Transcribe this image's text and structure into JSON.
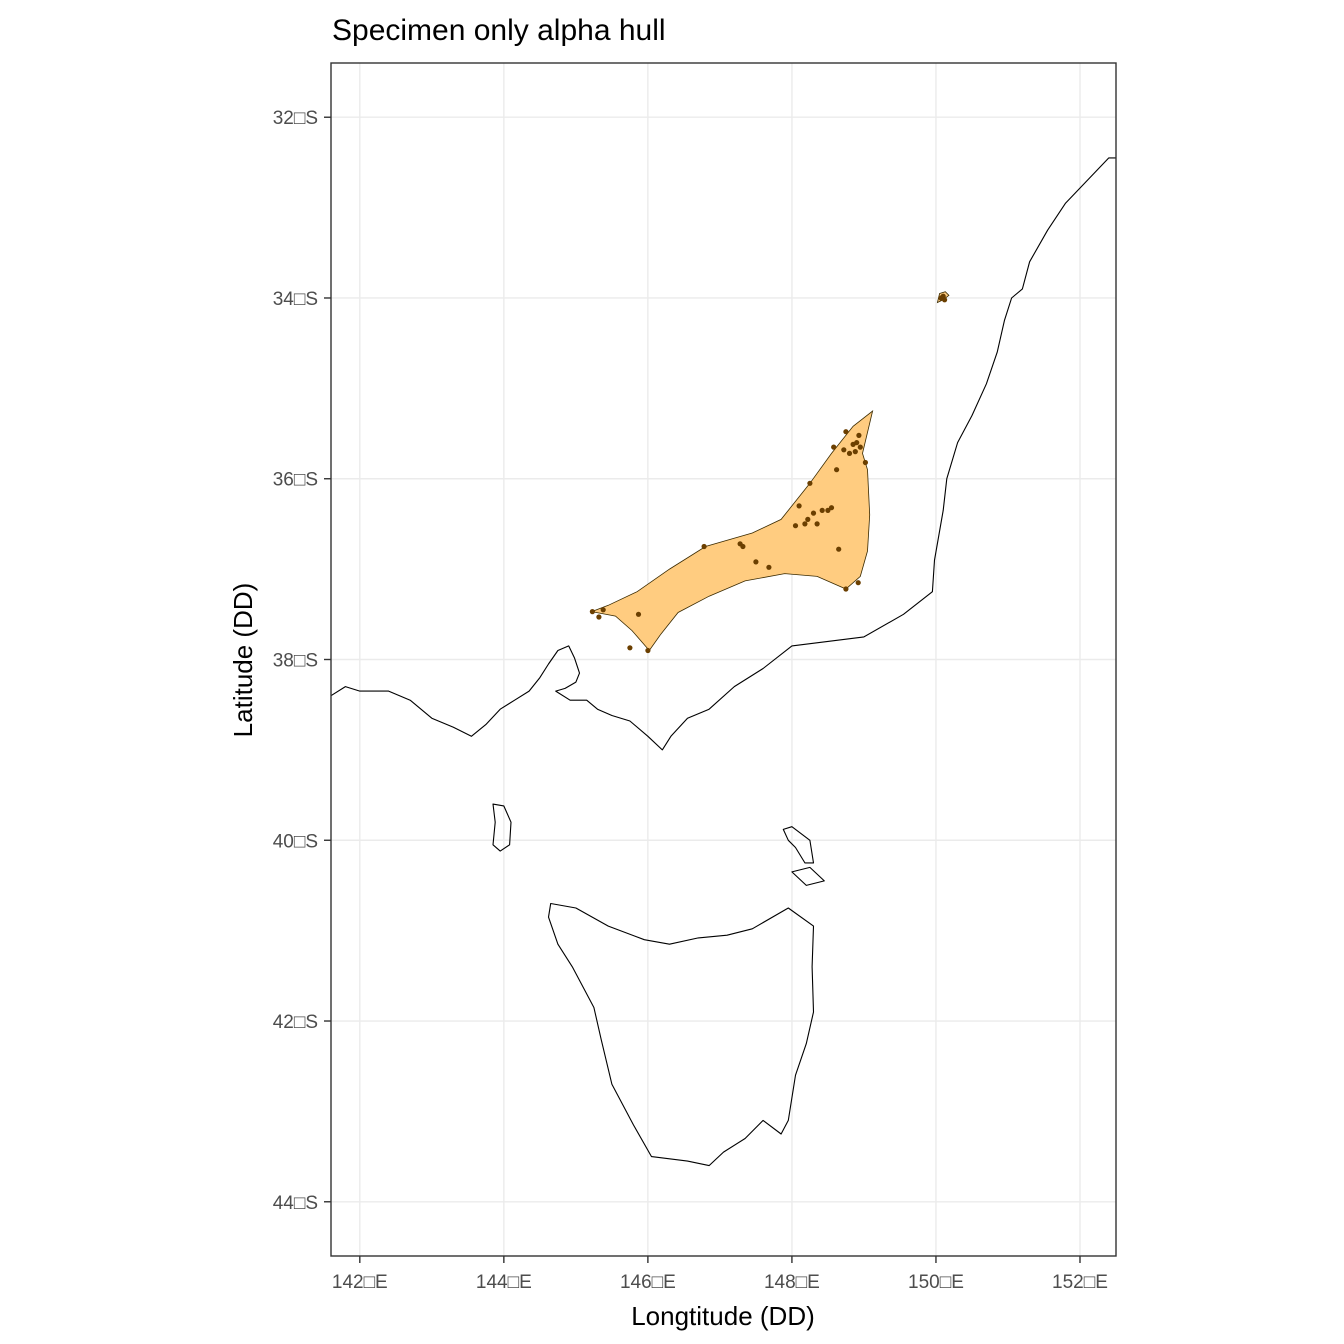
{
  "plot": {
    "title": "Specimen only alpha hull",
    "xlabel": "Longtitude (DD)",
    "ylabel": "Latitude (DD)",
    "hull_color": "#FFCC80",
    "point_color": "#6B3F00",
    "panel_border_color": "#333333",
    "grid_color": "#EBEBEB"
  },
  "chart_data": {
    "type": "map",
    "title": "Specimen only alpha hull",
    "xlabel": "Longtitude (DD)",
    "ylabel": "Latitude (DD)",
    "xlim": [
      141.6,
      152.5
    ],
    "ylim": [
      -44.6,
      -31.4
    ],
    "grid": true,
    "x_ticks": [
      {
        "value": 142,
        "label": "142□E"
      },
      {
        "value": 144,
        "label": "144□E"
      },
      {
        "value": 146,
        "label": "146□E"
      },
      {
        "value": 148,
        "label": "148□E"
      },
      {
        "value": 150,
        "label": "150□E"
      },
      {
        "value": 152,
        "label": "152□E"
      }
    ],
    "y_ticks": [
      {
        "value": -32,
        "label": "32□S"
      },
      {
        "value": -34,
        "label": "34□S"
      },
      {
        "value": -36,
        "label": "36□S"
      },
      {
        "value": -38,
        "label": "38□S"
      },
      {
        "value": -40,
        "label": "40□S"
      },
      {
        "value": -42,
        "label": "42□S"
      },
      {
        "value": -44,
        "label": "44□S"
      }
    ],
    "hull_polygons": [
      [
        [
          145.22,
          -37.47
        ],
        [
          145.55,
          -37.52
        ],
        [
          145.78,
          -37.68
        ],
        [
          146.02,
          -37.9
        ],
        [
          146.18,
          -37.72
        ],
        [
          146.42,
          -37.48
        ],
        [
          146.85,
          -37.3
        ],
        [
          147.35,
          -37.13
        ],
        [
          147.9,
          -37.05
        ],
        [
          148.35,
          -37.08
        ],
        [
          148.75,
          -37.22
        ],
        [
          148.95,
          -37.08
        ],
        [
          149.05,
          -36.8
        ],
        [
          149.08,
          -36.4
        ],
        [
          149.05,
          -35.9
        ],
        [
          148.98,
          -35.72
        ],
        [
          149.12,
          -35.25
        ],
        [
          148.85,
          -35.42
        ],
        [
          148.55,
          -35.72
        ],
        [
          148.25,
          -36.05
        ],
        [
          147.85,
          -36.45
        ],
        [
          147.45,
          -36.6
        ],
        [
          146.8,
          -36.75
        ],
        [
          146.3,
          -37.0
        ],
        [
          145.85,
          -37.25
        ],
        [
          145.45,
          -37.4
        ]
      ],
      [
        [
          150.05,
          -33.95
        ],
        [
          150.13,
          -33.93
        ],
        [
          150.18,
          -33.97
        ],
        [
          150.1,
          -34.02
        ],
        [
          150.02,
          -34.05
        ]
      ]
    ],
    "specimen_points": [
      [
        145.23,
        -37.47
      ],
      [
        145.32,
        -37.53
      ],
      [
        145.38,
        -37.45
      ],
      [
        145.75,
        -37.87
      ],
      [
        145.87,
        -37.5
      ],
      [
        146.0,
        -37.9
      ],
      [
        146.78,
        -36.75
      ],
      [
        147.28,
        -36.72
      ],
      [
        147.32,
        -36.75
      ],
      [
        147.5,
        -36.92
      ],
      [
        147.68,
        -36.98
      ],
      [
        148.05,
        -36.52
      ],
      [
        148.1,
        -36.3
      ],
      [
        148.18,
        -36.5
      ],
      [
        148.22,
        -36.45
      ],
      [
        148.25,
        -36.05
      ],
      [
        148.3,
        -36.38
      ],
      [
        148.35,
        -36.5
      ],
      [
        148.42,
        -36.35
      ],
      [
        148.5,
        -36.35
      ],
      [
        148.55,
        -36.32
      ],
      [
        148.65,
        -36.78
      ],
      [
        148.75,
        -37.22
      ],
      [
        148.92,
        -37.15
      ],
      [
        148.58,
        -35.65
      ],
      [
        148.62,
        -35.9
      ],
      [
        148.72,
        -35.68
      ],
      [
        148.75,
        -35.48
      ],
      [
        148.8,
        -35.72
      ],
      [
        148.85,
        -35.62
      ],
      [
        148.88,
        -35.7
      ],
      [
        148.9,
        -35.6
      ],
      [
        148.93,
        -35.52
      ],
      [
        148.95,
        -35.65
      ],
      [
        149.02,
        -35.82
      ],
      [
        150.07,
        -34.0
      ],
      [
        150.1,
        -33.98
      ],
      [
        150.12,
        -34.02
      ]
    ],
    "coastlines": {
      "mainland": [
        [
          141.6,
          -38.4
        ],
        [
          141.8,
          -38.3
        ],
        [
          142.0,
          -38.35
        ],
        [
          142.4,
          -38.35
        ],
        [
          142.7,
          -38.45
        ],
        [
          143.0,
          -38.65
        ],
        [
          143.3,
          -38.75
        ],
        [
          143.55,
          -38.85
        ],
        [
          143.75,
          -38.72
        ],
        [
          143.95,
          -38.55
        ],
        [
          144.15,
          -38.45
        ],
        [
          144.35,
          -38.35
        ],
        [
          144.5,
          -38.2
        ],
        [
          144.62,
          -38.05
        ],
        [
          144.75,
          -37.9
        ],
        [
          144.9,
          -37.85
        ],
        [
          144.98,
          -37.98
        ],
        [
          145.05,
          -38.15
        ],
        [
          145.0,
          -38.25
        ],
        [
          144.85,
          -38.32
        ],
        [
          144.72,
          -38.35
        ],
        [
          144.92,
          -38.45
        ],
        [
          145.15,
          -38.45
        ],
        [
          145.3,
          -38.55
        ],
        [
          145.5,
          -38.62
        ],
        [
          145.75,
          -38.68
        ],
        [
          146.0,
          -38.85
        ],
        [
          146.2,
          -39.0
        ],
        [
          146.32,
          -38.85
        ],
        [
          146.55,
          -38.65
        ],
        [
          146.85,
          -38.55
        ],
        [
          147.2,
          -38.3
        ],
        [
          147.6,
          -38.1
        ],
        [
          148.0,
          -37.85
        ],
        [
          148.5,
          -37.8
        ],
        [
          149.0,
          -37.75
        ],
        [
          149.55,
          -37.5
        ],
        [
          149.95,
          -37.25
        ],
        [
          149.98,
          -36.9
        ],
        [
          150.1,
          -36.35
        ],
        [
          150.15,
          -36.0
        ],
        [
          150.3,
          -35.6
        ],
        [
          150.5,
          -35.3
        ],
        [
          150.7,
          -34.95
        ],
        [
          150.85,
          -34.6
        ],
        [
          150.95,
          -34.25
        ],
        [
          151.05,
          -34.0
        ],
        [
          151.2,
          -33.9
        ],
        [
          151.3,
          -33.6
        ],
        [
          151.55,
          -33.25
        ],
        [
          151.8,
          -32.95
        ],
        [
          152.1,
          -32.7
        ],
        [
          152.4,
          -32.45
        ],
        [
          152.5,
          -32.45
        ]
      ],
      "king_island": [
        [
          143.85,
          -39.6
        ],
        [
          144.0,
          -39.62
        ],
        [
          144.1,
          -39.8
        ],
        [
          144.08,
          -40.05
        ],
        [
          143.95,
          -40.12
        ],
        [
          143.85,
          -40.05
        ],
        [
          143.88,
          -39.8
        ]
      ],
      "flinders_island": [
        [
          147.88,
          -39.88
        ],
        [
          148.0,
          -39.85
        ],
        [
          148.25,
          -40.0
        ],
        [
          148.3,
          -40.25
        ],
        [
          148.18,
          -40.25
        ],
        [
          148.05,
          -40.08
        ],
        [
          147.95,
          -40.0
        ]
      ],
      "cape_barren_island": [
        [
          148.0,
          -40.35
        ],
        [
          148.25,
          -40.3
        ],
        [
          148.45,
          -40.45
        ],
        [
          148.2,
          -40.5
        ]
      ],
      "tasmania": [
        [
          144.65,
          -40.7
        ],
        [
          145.0,
          -40.75
        ],
        [
          145.45,
          -40.95
        ],
        [
          145.95,
          -41.1
        ],
        [
          146.3,
          -41.15
        ],
        [
          146.7,
          -41.08
        ],
        [
          147.1,
          -41.05
        ],
        [
          147.45,
          -40.98
        ],
        [
          147.95,
          -40.75
        ],
        [
          148.3,
          -40.95
        ],
        [
          148.28,
          -41.4
        ],
        [
          148.3,
          -41.9
        ],
        [
          148.2,
          -42.25
        ],
        [
          148.05,
          -42.6
        ],
        [
          147.95,
          -43.1
        ],
        [
          147.85,
          -43.25
        ],
        [
          147.6,
          -43.1
        ],
        [
          147.35,
          -43.3
        ],
        [
          147.05,
          -43.45
        ],
        [
          146.85,
          -43.6
        ],
        [
          146.55,
          -43.55
        ],
        [
          146.05,
          -43.5
        ],
        [
          145.8,
          -43.15
        ],
        [
          145.5,
          -42.7
        ],
        [
          145.35,
          -42.2
        ],
        [
          145.25,
          -41.85
        ],
        [
          144.95,
          -41.4
        ],
        [
          144.75,
          -41.15
        ],
        [
          144.62,
          -40.85
        ]
      ]
    }
  }
}
